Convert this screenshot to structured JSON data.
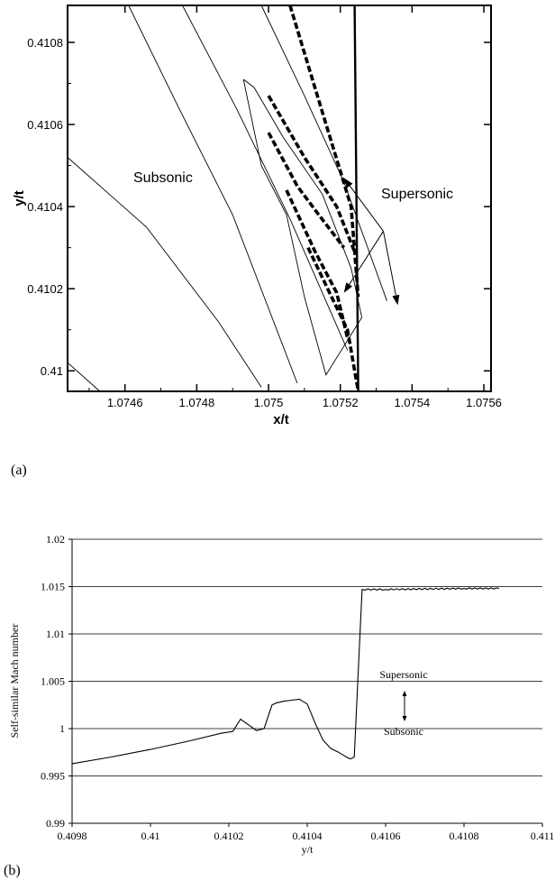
{
  "chart_data": [
    {
      "type": "contour",
      "panel_label": "(a)",
      "xlabel": "x/t",
      "ylabel": "y/t",
      "xlim": [
        1.07444,
        1.07562
      ],
      "ylim": [
        0.40995,
        0.41089
      ],
      "x_ticks": [
        "1.0746",
        "1.0748",
        "1.075",
        "1.0752",
        "1.0754",
        "1.0756"
      ],
      "y_ticks": [
        "0.41",
        "0.4102",
        "0.4104",
        "0.4106",
        "0.4108"
      ],
      "region_labels": {
        "subsonic": "Subsonic",
        "supersonic": "Supersonic"
      },
      "contours": [
        [
          [
            1.07444,
            0.41052
          ],
          [
            1.07466,
            0.41035
          ],
          [
            1.07486,
            0.41012
          ],
          [
            1.07498,
            0.40996
          ]
        ],
        [
          [
            1.07444,
            0.41002
          ],
          [
            1.07453,
            0.40995
          ]
        ],
        [
          [
            1.07461,
            0.41089
          ],
          [
            1.07475,
            0.41064
          ],
          [
            1.0749,
            0.41038
          ],
          [
            1.07508,
            0.40997
          ]
        ],
        [
          [
            1.07476,
            0.41089
          ],
          [
            1.07491,
            0.41064
          ],
          [
            1.07506,
            0.41037
          ],
          [
            1.07522,
            0.41005
          ]
        ],
        [
          [
            1.07498,
            0.41089
          ],
          [
            1.0751,
            0.41067
          ],
          [
            1.07521,
            0.41046
          ],
          [
            1.07533,
            0.41017
          ]
        ],
        [
          [
            1.07493,
            0.41071
          ],
          [
            1.07496,
            0.41069
          ],
          [
            1.07504,
            0.41057
          ],
          [
            1.07515,
            0.41043
          ],
          [
            1.07523,
            0.41025
          ],
          [
            1.07526,
            0.41013
          ],
          [
            1.07516,
            0.40999
          ],
          [
            1.0751,
            0.41018
          ],
          [
            1.07505,
            0.41038
          ],
          [
            1.07498,
            0.4105
          ],
          [
            1.07493,
            0.41071
          ]
        ],
        [
          [
            1.07524,
            0.41089
          ],
          [
            1.07525,
            0.40995
          ]
        ]
      ],
      "sonic_lines": [
        [
          [
            1.07506,
            0.41089
          ],
          [
            1.07515,
            0.41063
          ],
          [
            1.07523,
            0.4104
          ],
          [
            1.07525,
            0.41018
          ]
        ],
        [
          [
            1.075,
            0.41067
          ],
          [
            1.0751,
            0.41052
          ],
          [
            1.07519,
            0.4104
          ],
          [
            1.07524,
            0.41029
          ]
        ],
        [
          [
            1.075,
            0.41058
          ],
          [
            1.07508,
            0.41045
          ],
          [
            1.07514,
            0.41038
          ],
          [
            1.07521,
            0.4103
          ]
        ],
        [
          [
            1.07505,
            0.41044
          ],
          [
            1.07513,
            0.41029
          ],
          [
            1.07519,
            0.41019
          ],
          [
            1.07522,
            0.41008
          ]
        ],
        [
          [
            1.07511,
            0.4103
          ],
          [
            1.07517,
            0.41019
          ],
          [
            1.07522,
            0.4101
          ],
          [
            1.07525,
            0.40995
          ]
        ]
      ],
      "annotation_arrows": {
        "start": [
          1.07532,
          0.41034
        ],
        "ends": [
          [
            1.07521,
            0.41047
          ],
          [
            1.07521,
            0.41019
          ],
          [
            1.07536,
            0.41016
          ]
        ]
      }
    },
    {
      "type": "line",
      "panel_label": "(b)",
      "xlabel": "y/t",
      "ylabel": "Self-similar Mach number",
      "xlim": [
        0.4098,
        0.411
      ],
      "ylim": [
        0.99,
        1.02
      ],
      "x_ticks": [
        "0.4098",
        "0.41",
        "0.4102",
        "0.4104",
        "0.4106",
        "0.4108",
        "0.411"
      ],
      "y_ticks": [
        "0.99",
        "0.995",
        "1",
        "1.005",
        "1.01",
        "1.015",
        "1.02"
      ],
      "grid": "horizontal",
      "region_labels": {
        "supersonic": "Supersonic",
        "subsonic": "Subsonic"
      },
      "x": [
        0.4098,
        0.4099,
        0.41,
        0.4101,
        0.41018,
        0.41021,
        0.41023,
        0.41025,
        0.41027,
        0.41029,
        0.41031,
        0.41032,
        0.41034,
        0.41036,
        0.41038,
        0.4104,
        0.41042,
        0.41044,
        0.41046,
        0.41048,
        0.4105,
        0.41051,
        0.41052,
        0.41053,
        0.41054,
        0.4106,
        0.4108,
        0.41089
      ],
      "y": [
        0.9963,
        0.997,
        0.9978,
        0.9987,
        0.9995,
        0.9997,
        1.001,
        1.0004,
        0.9998,
        1.0,
        1.0025,
        1.0027,
        1.0029,
        1.003,
        1.0031,
        1.0026,
        1.0006,
        0.9988,
        0.9979,
        0.9975,
        0.997,
        0.9968,
        0.997,
        1.006,
        1.0147,
        1.0147,
        1.0148,
        1.0148
      ]
    }
  ]
}
